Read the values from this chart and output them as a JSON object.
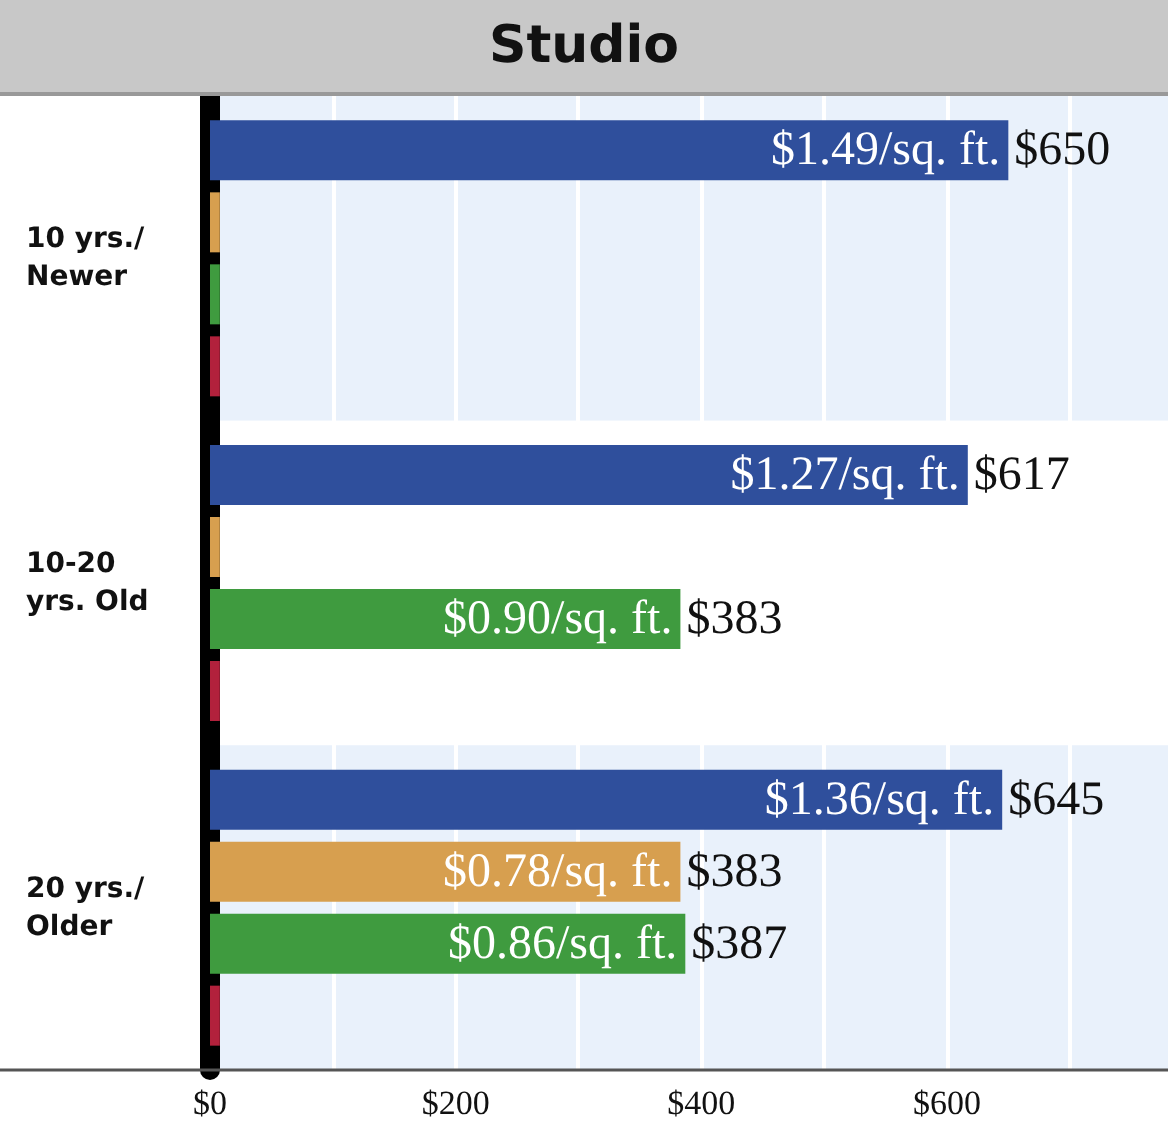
{
  "chart_data": {
    "type": "bar",
    "orientation": "horizontal",
    "title": "Studio",
    "categories": [
      "10 yrs./\nNewer",
      "10-20\nyrs. Old",
      "20 yrs./\nOlder"
    ],
    "series": [
      {
        "color": "#2f4f9c",
        "values": [
          650,
          617,
          645
        ],
        "value_labels": [
          "$650",
          "$617",
          "$645"
        ]
      },
      {
        "color": "#d79f4f",
        "values": [
          8,
          8,
          383
        ],
        "value_labels": [
          null,
          null,
          "$383"
        ]
      },
      {
        "color": "#3f9b3f",
        "values": [
          8,
          383,
          387
        ],
        "value_labels": [
          null,
          "$383",
          "$387"
        ]
      },
      {
        "color": "#b2213c",
        "values": [
          8,
          8,
          8
        ]
      }
    ],
    "xlim": [
      0,
      780
    ],
    "xticks": [
      {
        "value": 0,
        "label": "$0"
      },
      {
        "value": 100,
        "label": null
      },
      {
        "value": 200,
        "label": "$200"
      },
      {
        "value": 300,
        "label": null
      },
      {
        "value": 400,
        "label": "$400"
      },
      {
        "value": 500,
        "label": null
      },
      {
        "value": 600,
        "label": "$600"
      },
      {
        "value": 700,
        "label": null
      }
    ],
    "grid": "x",
    "annotations": [
      "$1.49/sq. ft.",
      "$1.27/sq. ft.",
      "$0.90/sq. ft.",
      "$1.36/sq. ft.",
      "$0.78/sq. ft.",
      "$0.86/sq. ft."
    ]
  }
}
